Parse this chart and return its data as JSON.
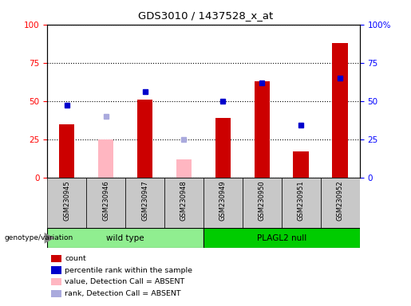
{
  "title": "GDS3010 / 1437528_x_at",
  "samples": [
    "GSM230945",
    "GSM230946",
    "GSM230947",
    "GSM230948",
    "GSM230949",
    "GSM230950",
    "GSM230951",
    "GSM230952"
  ],
  "count_values": [
    35,
    null,
    51,
    null,
    39,
    63,
    17,
    88
  ],
  "count_absent": [
    null,
    25,
    null,
    12,
    null,
    null,
    null,
    null
  ],
  "rank_values": [
    47,
    null,
    56,
    null,
    50,
    62,
    34,
    65
  ],
  "rank_absent": [
    null,
    40,
    null,
    25,
    null,
    null,
    null,
    null
  ],
  "ylim": [
    0,
    100
  ],
  "count_color": "#CC0000",
  "count_absent_color": "#FFB6C1",
  "rank_color": "#0000CC",
  "rank_absent_color": "#AAAADD",
  "wt_color": "#90EE90",
  "null_color": "#00CC00",
  "legend_items": [
    {
      "label": "count",
      "color": "#CC0000"
    },
    {
      "label": "percentile rank within the sample",
      "color": "#0000CC"
    },
    {
      "label": "value, Detection Call = ABSENT",
      "color": "#FFB6C1"
    },
    {
      "label": "rank, Detection Call = ABSENT",
      "color": "#AAAADD"
    }
  ]
}
